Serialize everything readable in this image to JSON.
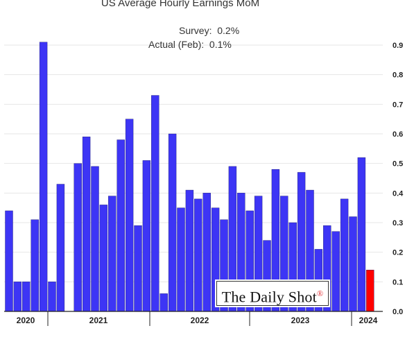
{
  "title": "US Average Hourly Earnings MoM",
  "annotation": {
    "survey_label": "Survey:",
    "survey_value": "0.2%",
    "actual_label": "Actual (Feb):",
    "actual_value": "0.1%"
  },
  "watermark": "The Daily Shot",
  "colors": {
    "bar": "#3d35f5",
    "highlight": "#ff0000",
    "grid": "#e6e6e6",
    "axis": "#222222"
  },
  "chart_data": {
    "type": "bar",
    "title": "US Average Hourly Earnings MoM",
    "ylim": [
      0.0,
      0.9
    ],
    "ytick_labels": [
      "0.0",
      "0.1",
      "0.2",
      "0.3",
      "0.4",
      "0.5",
      "0.6",
      "0.7",
      "0.8",
      "0.9"
    ],
    "xtick_labels": [
      "2020",
      "2021",
      "2022",
      "2023",
      "2024"
    ],
    "grid": true,
    "legend": "none",
    "y_axis_side": "right",
    "values": [
      0.34,
      0.1,
      0.1,
      0.31,
      0.91,
      0.1,
      0.43,
      0.0,
      0.5,
      0.59,
      0.49,
      0.36,
      0.39,
      0.58,
      0.65,
      0.29,
      0.51,
      0.73,
      0.06,
      0.6,
      0.35,
      0.41,
      0.38,
      0.4,
      0.35,
      0.31,
      0.49,
      0.4,
      0.34,
      0.39,
      0.24,
      0.48,
      0.39,
      0.3,
      0.47,
      0.41,
      0.21,
      0.29,
      0.27,
      0.38,
      0.32,
      0.52,
      0.14
    ],
    "highlight_last": true
  }
}
